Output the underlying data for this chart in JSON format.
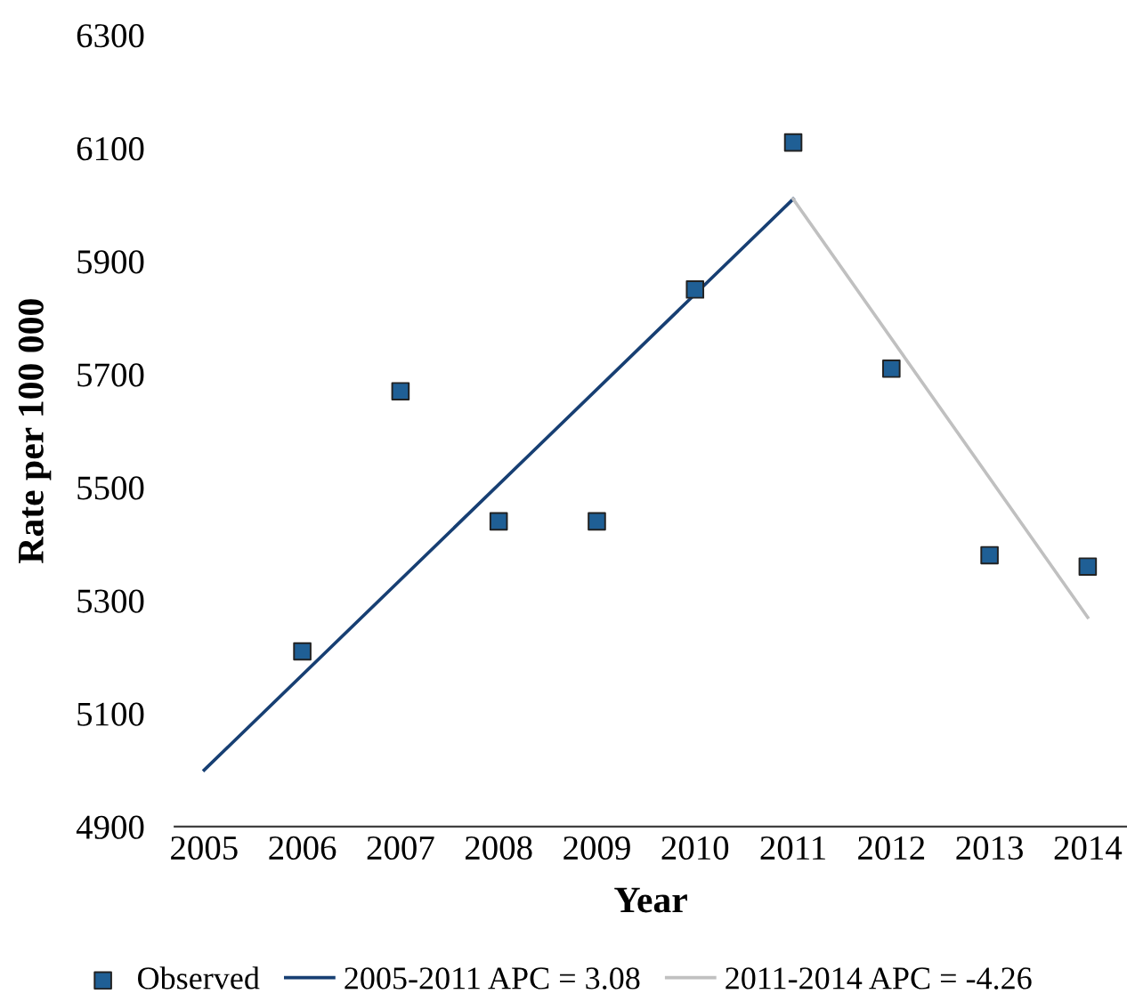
{
  "chart_data": {
    "type": "scatter",
    "xlabel": "Year",
    "ylabel": "Rate per 100 000",
    "xlim": [
      2004.7,
      2014.4
    ],
    "xticks": [
      2005,
      2006,
      2007,
      2008,
      2009,
      2010,
      2011,
      2012,
      2013,
      2014
    ],
    "ylim": [
      4900,
      6300
    ],
    "yticks": [
      4900,
      5100,
      5300,
      5500,
      5700,
      5900,
      6100,
      6300
    ],
    "grid": false,
    "legend": "bottom",
    "series": [
      {
        "name": "Observed",
        "marker": "square",
        "color": "#1f5f95",
        "x": [
          2006,
          2007,
          2008,
          2009,
          2010,
          2011,
          2012,
          2013,
          2014
        ],
        "values": [
          5210,
          5670,
          5440,
          5440,
          5850,
          6110,
          5710,
          5380,
          5360
        ]
      },
      {
        "name": "2005-2011 APC = 3.08",
        "type": "line",
        "color": "#173f73",
        "x": [
          2005,
          2011
        ],
        "values": [
          5000,
          6010
        ]
      },
      {
        "name": "2011-2014 APC = -4.26",
        "type": "line",
        "color": "#c0c0c0",
        "x": [
          2011,
          2014
        ],
        "values": [
          6010,
          5270
        ]
      }
    ]
  }
}
